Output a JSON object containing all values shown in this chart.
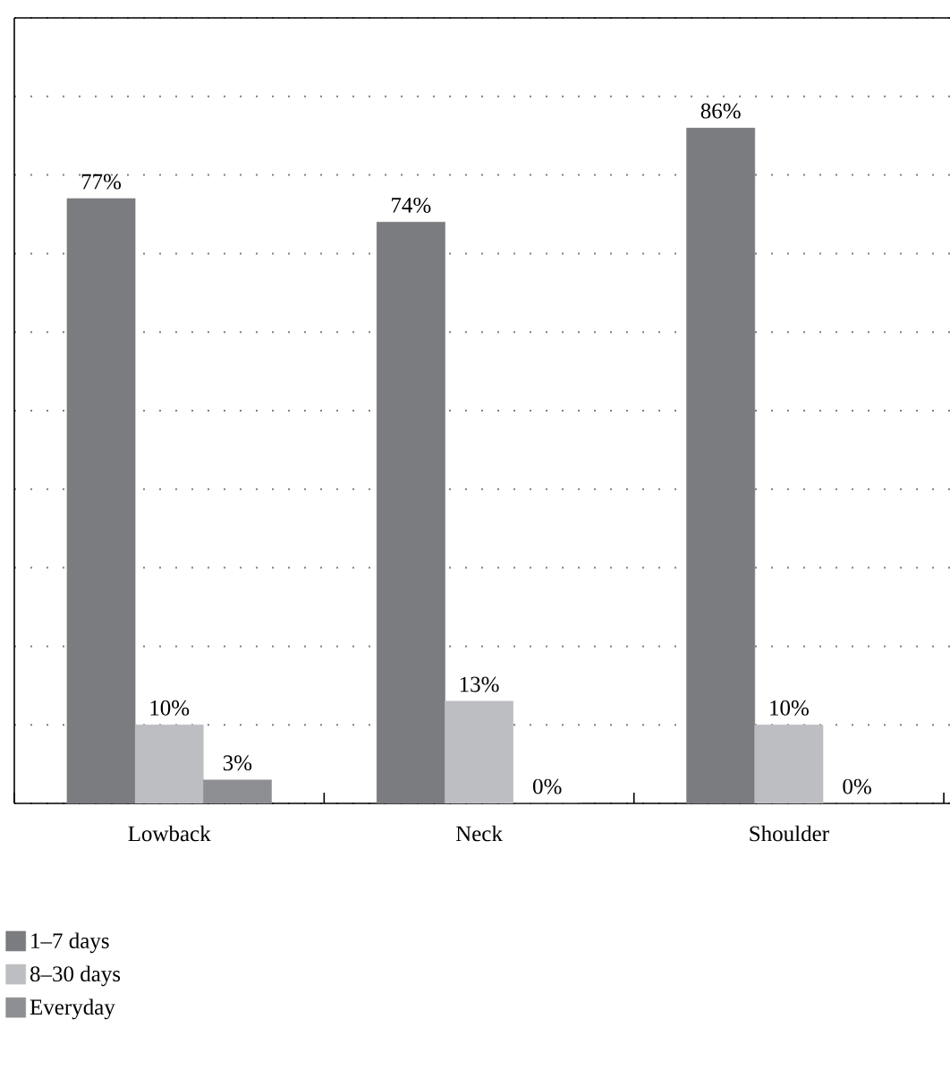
{
  "chart_data": {
    "type": "bar",
    "categories": [
      "Lowback",
      "Neck",
      "Shoulder"
    ],
    "series": [
      {
        "name": "1–7 days",
        "color": "#7b7c80",
        "values": [
          77,
          74,
          86
        ],
        "value_labels": [
          "77%",
          "74%",
          "86%"
        ]
      },
      {
        "name": "8–30 days",
        "color": "#bdbec2",
        "values": [
          10,
          13,
          10
        ],
        "value_labels": [
          "10%",
          "13%",
          "10%"
        ]
      },
      {
        "name": "Everyday",
        "color": "#8e8f93",
        "values": [
          3,
          0,
          0
        ],
        "value_labels": [
          "3%",
          "0%",
          "0%"
        ]
      }
    ],
    "ylim": [
      0,
      100
    ],
    "yticks": [
      0,
      10,
      20,
      30,
      40,
      50,
      60,
      70,
      80,
      90,
      100
    ],
    "tick_labels": "x",
    "grid": "y",
    "legend": "bottom"
  }
}
